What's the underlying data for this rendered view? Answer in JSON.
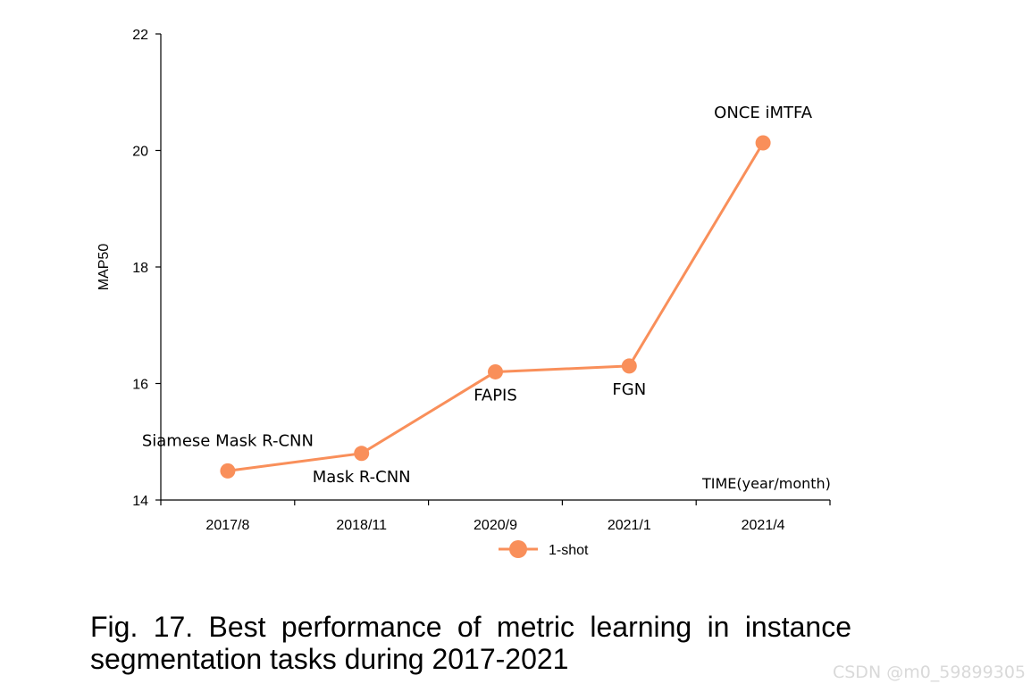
{
  "chart_data": {
    "type": "line",
    "categories": [
      "2017/8",
      "2018/11",
      "2020/9",
      "2021/1",
      "2021/4"
    ],
    "series": [
      {
        "name": "1-shot",
        "values": [
          14.5,
          14.8,
          16.2,
          16.3,
          20.13
        ],
        "color": "#f98f5a"
      }
    ],
    "annotations": [
      {
        "index": 0,
        "text": "Siamese Mask R-CNN",
        "placement": "above"
      },
      {
        "index": 1,
        "text": "Mask R-CNN",
        "placement": "below"
      },
      {
        "index": 2,
        "text": "FAPIS",
        "placement": "below"
      },
      {
        "index": 3,
        "text": "FGN",
        "placement": "below"
      },
      {
        "index": 4,
        "text": "ONCE iMTFA",
        "placement": "above"
      }
    ],
    "xlabel": "TIME(year/month)",
    "ylabel": "MAP50",
    "ylim": [
      14,
      22
    ],
    "yticks": [
      14,
      16,
      18,
      20,
      22
    ],
    "grid": false,
    "legend": "bottom-center"
  },
  "caption": "Fig. 17. Best performance of metric learning in instance segmentation tasks during 2017-2021",
  "watermark": "CSDN @m0_59899305"
}
